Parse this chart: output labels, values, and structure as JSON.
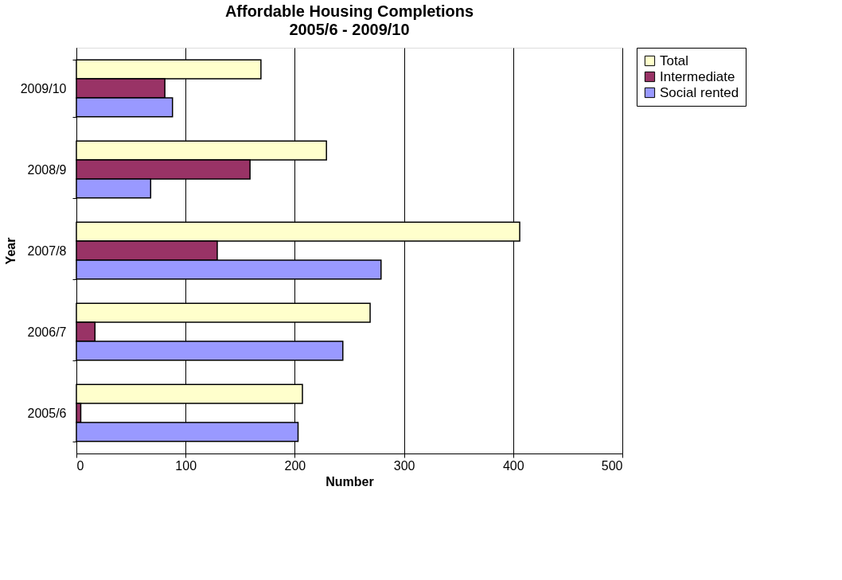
{
  "chart_data": {
    "type": "bar",
    "orientation": "horizontal",
    "title": "Affordable Housing Completions",
    "subtitle": "2005/6 - 2009/10",
    "xlabel": "Number",
    "ylabel": "Year",
    "categories": [
      "2009/10",
      "2008/9",
      "2007/8",
      "2006/7",
      "2005/6"
    ],
    "series": [
      {
        "name": "Total",
        "color": "#ffffcc",
        "values": [
          169,
          229,
          406,
          269,
          207
        ]
      },
      {
        "name": "Intermediate",
        "color": "#993366",
        "values": [
          81,
          159,
          129,
          17,
          4
        ]
      },
      {
        "name": "Social rented",
        "color": "#9999ff",
        "values": [
          88,
          68,
          279,
          244,
          203
        ]
      }
    ],
    "xlim": [
      0,
      500
    ],
    "xticks": [
      0,
      100,
      200,
      300,
      400,
      500
    ],
    "grid": "x",
    "legend": "top right"
  }
}
